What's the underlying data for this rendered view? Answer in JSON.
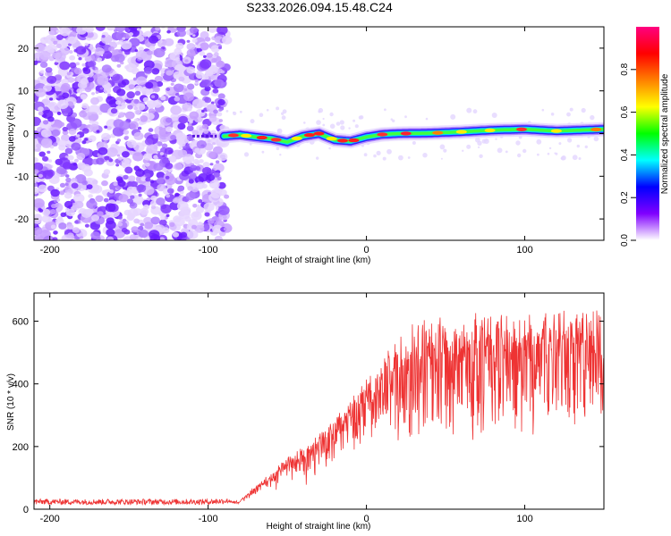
{
  "title": "S233.2026.094.15.48.C24",
  "chart_data": [
    {
      "type": "heatmap",
      "xlabel": "Height of straight line (km)",
      "ylabel": "Frequency (Hz)",
      "xlim": [
        -210,
        150
      ],
      "ylim": [
        -25,
        25
      ],
      "xticks": [
        -200,
        -100,
        0,
        100
      ],
      "xtick_labels": [
        "-200",
        "-100",
        "0",
        "100"
      ],
      "yticks": [
        -20,
        -10,
        0,
        10,
        20
      ],
      "ytick_labels": [
        "-20",
        "-10",
        "0",
        "10",
        "20"
      ],
      "noise_region_x": [
        -210,
        -88
      ],
      "signal_start_x": -90,
      "signal_center_hz": {
        "x": [
          -90,
          -80,
          -70,
          -60,
          -50,
          -40,
          -30,
          -20,
          -10,
          0,
          10,
          20,
          40,
          60,
          80,
          100,
          120,
          150
        ],
        "y": [
          -0.6,
          -0.3,
          -0.8,
          -1.2,
          -2.0,
          -0.6,
          0.0,
          -1.5,
          -1.8,
          -0.8,
          -0.2,
          0.0,
          0.1,
          0.4,
          0.8,
          1.0,
          0.6,
          1.0
        ]
      },
      "colorbar": {
        "label": "Normalized spectral amplitude",
        "range": [
          0,
          1
        ],
        "ticks": [
          0.0,
          0.2,
          0.4,
          0.6,
          0.8
        ],
        "tick_labels": [
          "0.0",
          "0.2",
          "0.4",
          "0.6",
          "0.8"
        ],
        "colors": [
          "#ffffff",
          "#8000ff",
          "#0000ff",
          "#00ffff",
          "#00ff00",
          "#ffff00",
          "#ff8000",
          "#ff0000",
          "#ff0080"
        ]
      }
    },
    {
      "type": "line",
      "xlabel": "Height of straight line (km)",
      "ylabel": "SNR (10 * v/v)",
      "xlim": [
        -210,
        150
      ],
      "ylim": [
        0,
        690
      ],
      "xticks": [
        -200,
        -100,
        0,
        100
      ],
      "xtick_labels": [
        "-200",
        "-100",
        "0",
        "100"
      ],
      "yticks": [
        0,
        200,
        400,
        600
      ],
      "ytick_labels": [
        "0",
        "200",
        "400",
        "600"
      ],
      "color": "#ee3333",
      "trend": {
        "x": [
          -210,
          -150,
          -100,
          -80,
          -70,
          -60,
          -50,
          -40,
          -30,
          -20,
          -10,
          0,
          10,
          20,
          30,
          50,
          80,
          100,
          120,
          150
        ],
        "y": [
          20,
          20,
          20,
          25,
          70,
          110,
          150,
          180,
          220,
          270,
          320,
          380,
          440,
          500,
          540,
          560,
          570,
          570,
          575,
          575
        ]
      }
    }
  ]
}
